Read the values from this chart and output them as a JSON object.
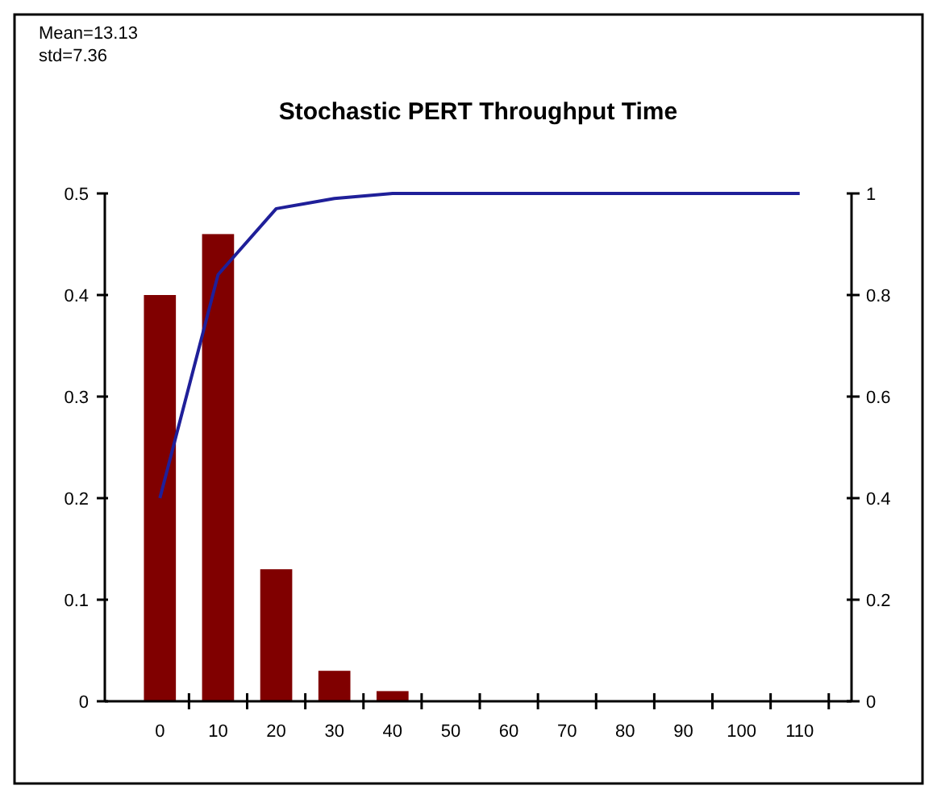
{
  "chart_data": {
    "type": "bar",
    "title": "Stochastic PERT Throughput Time",
    "annotations": [
      "Mean=13.13",
      "std=7.36"
    ],
    "categories": [
      "0",
      "10",
      "20",
      "30",
      "40",
      "50",
      "60",
      "70",
      "80",
      "90",
      "100",
      "110"
    ],
    "series": [
      {
        "color": "#800000",
        "values": [
          0.4,
          0.46,
          0.13,
          0.03,
          0.01,
          0,
          0,
          0,
          0,
          0,
          0,
          0
        ]
      },
      {
        "type": "line",
        "axis": "y2",
        "color": "#1f1f99",
        "values": [
          0.4,
          0.84,
          0.97,
          0.99,
          1,
          1,
          1,
          1,
          1,
          1,
          1,
          1
        ]
      }
    ],
    "ylim": [
      0,
      0.5
    ],
    "yticks": [
      0,
      0.1,
      0.2,
      0.3,
      0.4,
      0.5
    ],
    "y2lim": [
      0,
      1
    ],
    "y2ticks": [
      0,
      0.2,
      0.4,
      0.6,
      0.8,
      1
    ],
    "grid": false,
    "marker": "none",
    "line_style": "solid"
  }
}
